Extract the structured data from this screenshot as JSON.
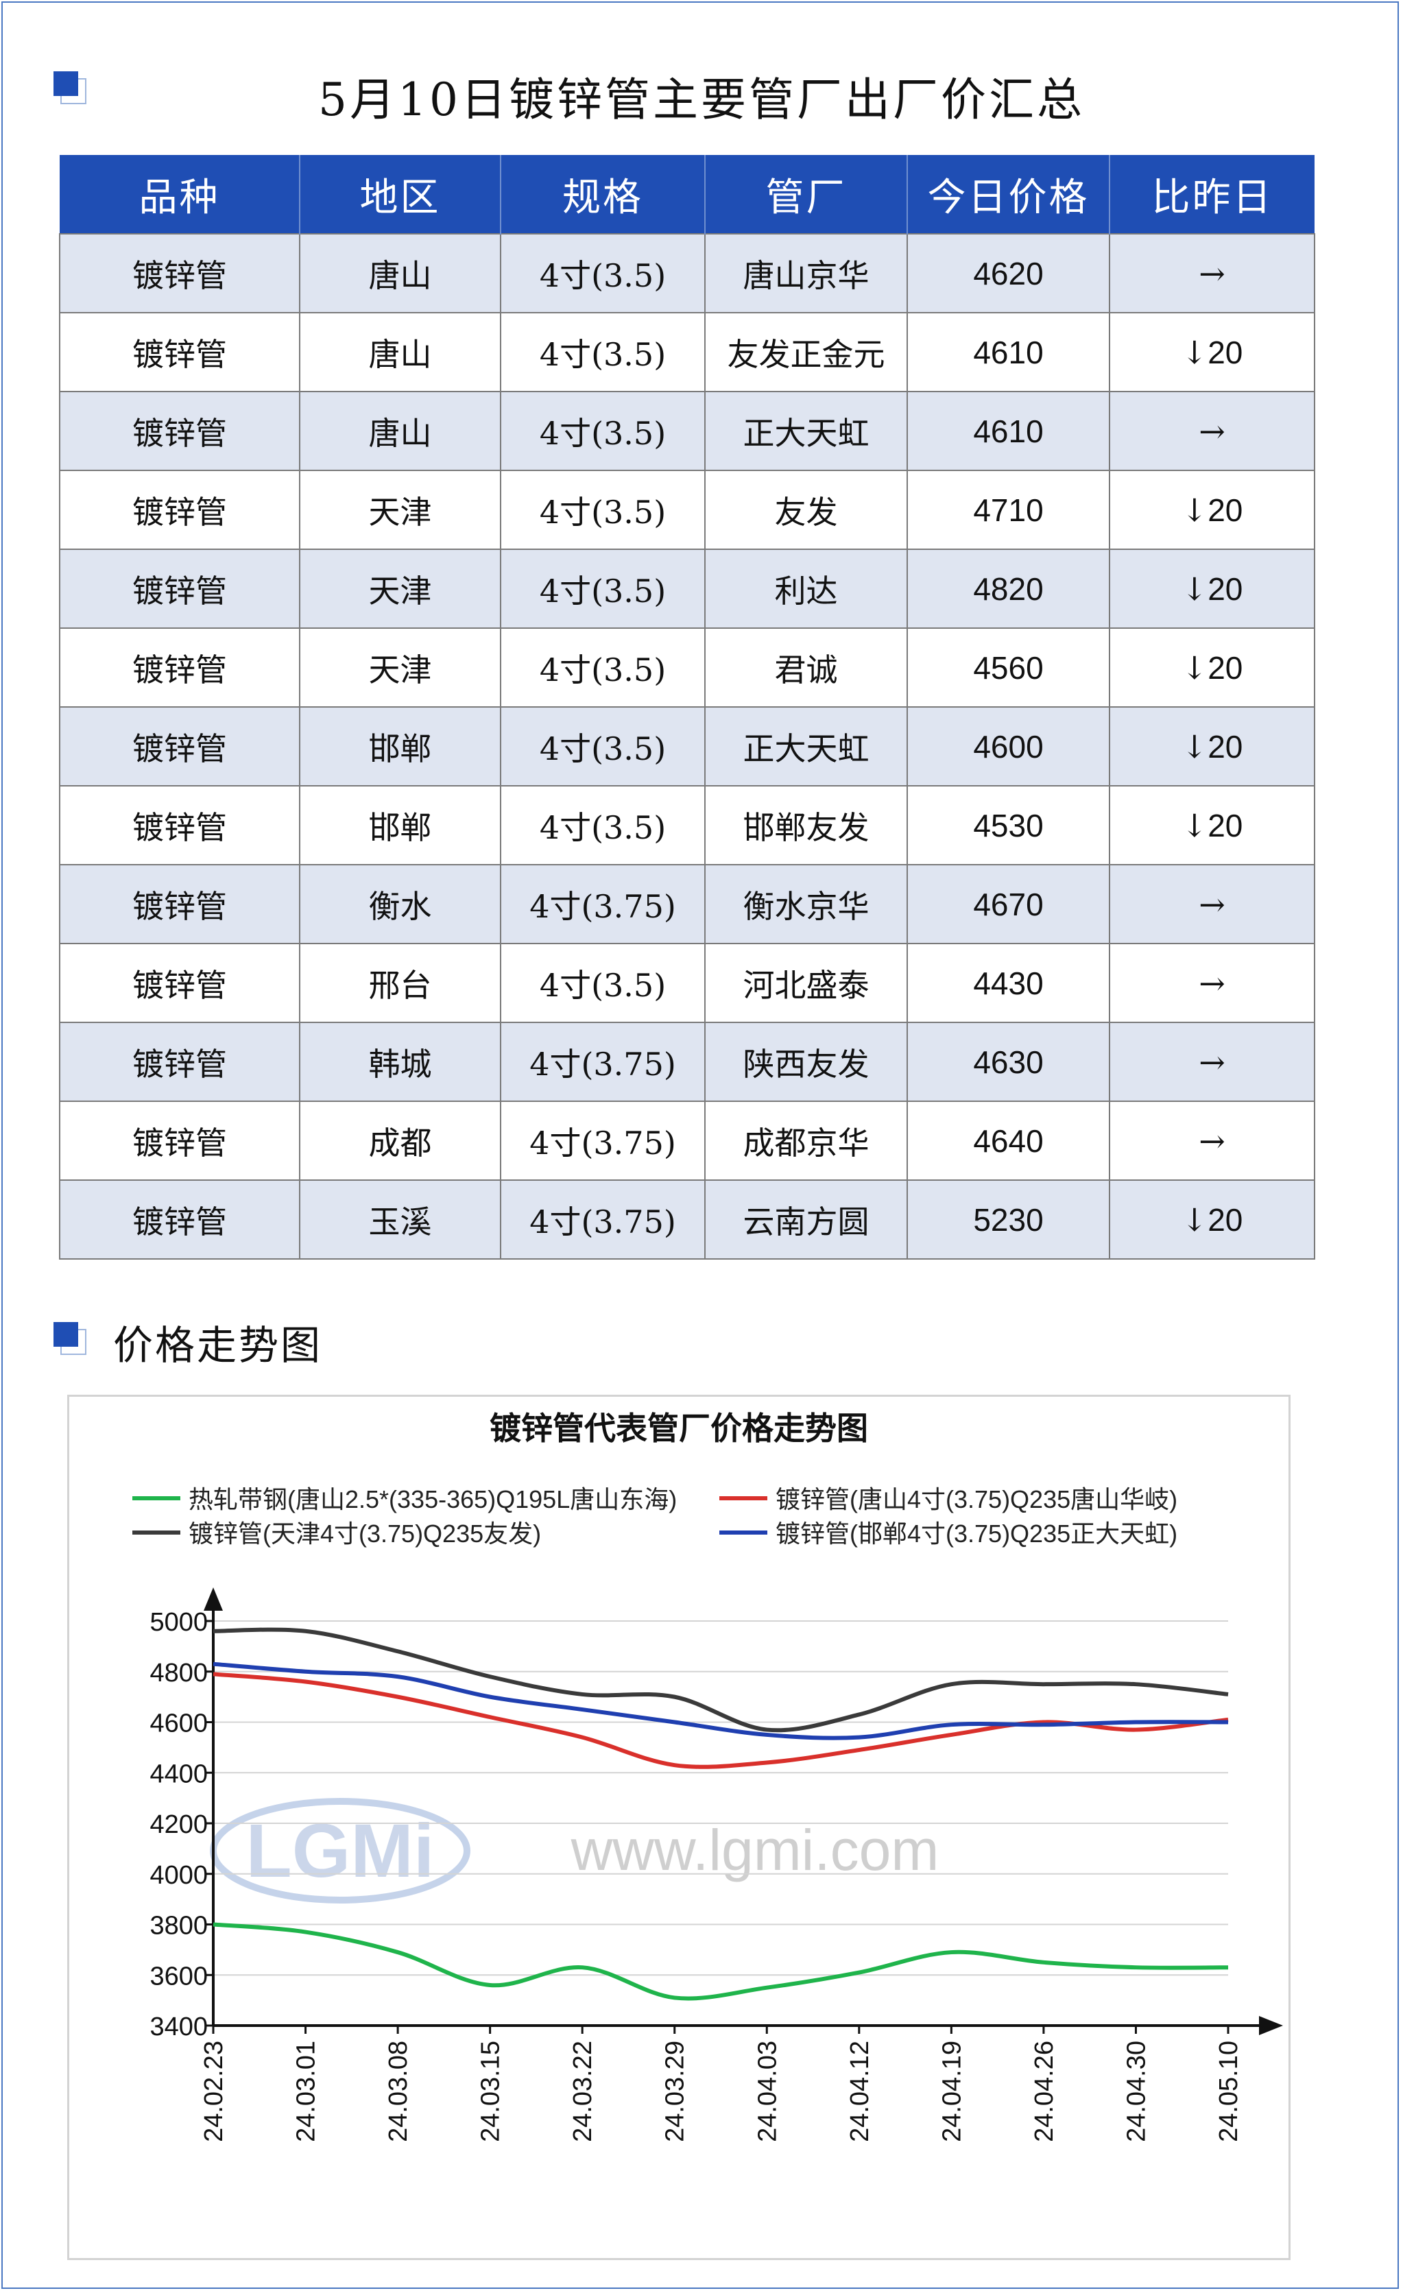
{
  "page_title": "5月10日镀锌管主要管厂出厂价汇总",
  "section_title": "价格走势图",
  "table": {
    "headers": [
      "品种",
      "地区",
      "规格",
      "管厂",
      "今日价格",
      "比昨日"
    ],
    "rows": [
      {
        "variety": "镀锌管",
        "region": "唐山",
        "spec": "4寸(3.5)",
        "mill": "唐山京华",
        "price": "4620",
        "change_symbol": "→",
        "change_value": "",
        "trend": "flat"
      },
      {
        "variety": "镀锌管",
        "region": "唐山",
        "spec": "4寸(3.5)",
        "mill": "友发正金元",
        "price": "4610",
        "change_symbol": "↓",
        "change_value": "20",
        "trend": "down"
      },
      {
        "variety": "镀锌管",
        "region": "唐山",
        "spec": "4寸(3.5)",
        "mill": "正大天虹",
        "price": "4610",
        "change_symbol": "→",
        "change_value": "",
        "trend": "flat"
      },
      {
        "variety": "镀锌管",
        "region": "天津",
        "spec": "4寸(3.5)",
        "mill": "友发",
        "price": "4710",
        "change_symbol": "↓",
        "change_value": "20",
        "trend": "down"
      },
      {
        "variety": "镀锌管",
        "region": "天津",
        "spec": "4寸(3.5)",
        "mill": "利达",
        "price": "4820",
        "change_symbol": "↓",
        "change_value": "20",
        "trend": "down"
      },
      {
        "variety": "镀锌管",
        "region": "天津",
        "spec": "4寸(3.5)",
        "mill": "君诚",
        "price": "4560",
        "change_symbol": "↓",
        "change_value": "20",
        "trend": "down"
      },
      {
        "variety": "镀锌管",
        "region": "邯郸",
        "spec": "4寸(3.5)",
        "mill": "正大天虹",
        "price": "4600",
        "change_symbol": "↓",
        "change_value": "20",
        "trend": "down"
      },
      {
        "variety": "镀锌管",
        "region": "邯郸",
        "spec": "4寸(3.5)",
        "mill": "邯郸友发",
        "price": "4530",
        "change_symbol": "↓",
        "change_value": "20",
        "trend": "down"
      },
      {
        "variety": "镀锌管",
        "region": "衡水",
        "spec": "4寸(3.75)",
        "mill": "衡水京华",
        "price": "4670",
        "change_symbol": "→",
        "change_value": "",
        "trend": "flat"
      },
      {
        "variety": "镀锌管",
        "region": "邢台",
        "spec": "4寸(3.5)",
        "mill": "河北盛泰",
        "price": "4430",
        "change_symbol": "→",
        "change_value": "",
        "trend": "flat"
      },
      {
        "variety": "镀锌管",
        "region": "韩城",
        "spec": "4寸(3.75)",
        "mill": "陕西友发",
        "price": "4630",
        "change_symbol": "→",
        "change_value": "",
        "trend": "flat"
      },
      {
        "variety": "镀锌管",
        "region": "成都",
        "spec": "4寸(3.75)",
        "mill": "成都京华",
        "price": "4640",
        "change_symbol": "→",
        "change_value": "",
        "trend": "flat"
      },
      {
        "variety": "镀锌管",
        "region": "玉溪",
        "spec": "4寸(3.75)",
        "mill": "云南方圆",
        "price": "5230",
        "change_symbol": "↓",
        "change_value": "20",
        "trend": "down"
      }
    ]
  },
  "colors": {
    "header_blue": "#1f4eb4",
    "row_alt": "#dfe5f1",
    "down_green": "#19a34a"
  },
  "chart_data": {
    "type": "line",
    "title": "镀锌管代表管厂价格走势图",
    "watermark": "www.lgmi.com",
    "watermark_logo": "LGMi",
    "x": [
      "24.02.23",
      "24.03.01",
      "24.03.08",
      "24.03.15",
      "24.03.22",
      "24.03.29",
      "24.04.03",
      "24.04.12",
      "24.04.19",
      "24.04.26",
      "24.04.30",
      "24.05.10"
    ],
    "ylim": [
      3400,
      5000
    ],
    "yticks": [
      3400,
      3600,
      3800,
      4000,
      4200,
      4400,
      4600,
      4800,
      5000
    ],
    "grid": true,
    "legend_position": "top",
    "series": [
      {
        "name": "热轧带钢(唐山2.5*(335-365)Q195L唐山东海)",
        "color": "#1fb44b",
        "values": [
          3800,
          3770,
          3690,
          3560,
          3630,
          3510,
          3550,
          3610,
          3690,
          3650,
          3630,
          3630
        ]
      },
      {
        "name": "镀锌管(唐山4寸(3.75)Q235唐山华岐)",
        "color": "#d9302b",
        "values": [
          4790,
          4760,
          4700,
          4620,
          4540,
          4430,
          4440,
          4490,
          4550,
          4600,
          4570,
          4610
        ]
      },
      {
        "name": "镀锌管(天津4寸(3.75)Q235友发)",
        "color": "#3a3a3a",
        "values": [
          4960,
          4960,
          4880,
          4780,
          4710,
          4700,
          4570,
          4630,
          4750,
          4750,
          4750,
          4710
        ]
      },
      {
        "name": "镀锌管(邯郸4寸(3.75)Q235正大天虹)",
        "color": "#1f3fb0",
        "values": [
          4830,
          4800,
          4780,
          4700,
          4650,
          4600,
          4550,
          4540,
          4590,
          4590,
          4600,
          4600
        ]
      }
    ]
  }
}
